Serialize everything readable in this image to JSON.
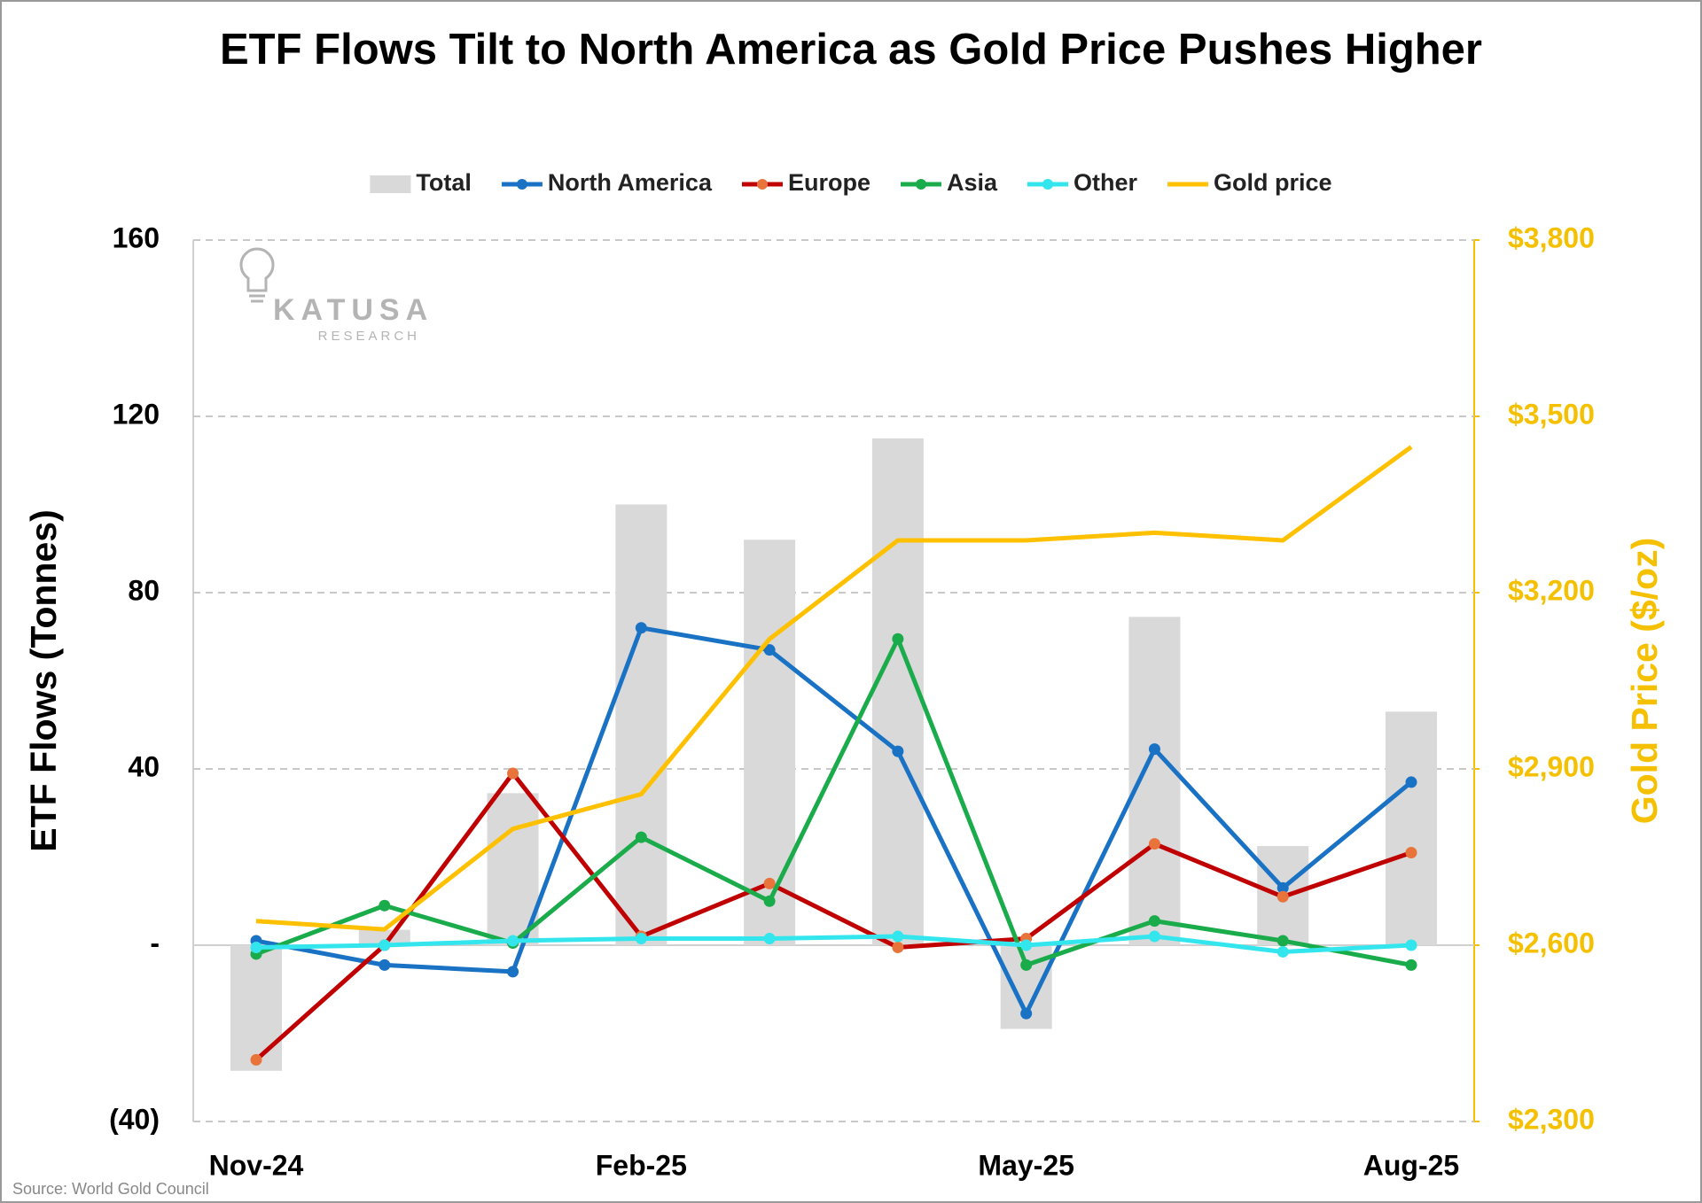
{
  "chart_data": {
    "type": "combo",
    "title": "ETF Flows Tilt to North America as Gold Price Pushes Higher",
    "ylabel": "ETF Flows (Tonnes)",
    "y2label": "Gold Price ($/oz)",
    "source": "Source: World Gold Council",
    "logo": {
      "name": "KATUSA",
      "subtitle": "RESEARCH"
    },
    "categories": [
      "Nov-24",
      null,
      null,
      "Feb-25",
      null,
      null,
      "May-25",
      null,
      null,
      "Aug-25"
    ],
    "ylim": [
      -40,
      160
    ],
    "yticks": [
      {
        "value": -40,
        "label": "(40)"
      },
      {
        "value": 0,
        "label": "-"
      },
      40,
      80,
      120,
      160
    ],
    "y2lim": [
      2300,
      3800
    ],
    "y2ticks": [
      {
        "value": 2300,
        "label": "$2,300"
      },
      {
        "value": 2600,
        "label": "$2,600"
      },
      {
        "value": 2900,
        "label": "$2,900"
      },
      {
        "value": 3200,
        "label": "$3,200"
      },
      {
        "value": 3500,
        "label": "$3,500"
      },
      {
        "value": 3800,
        "label": "$3,800"
      }
    ],
    "y2color": "#f5c000",
    "grid": true,
    "series": [
      {
        "name": "Total",
        "type": "bar",
        "color": "#d9d9d9",
        "values": [
          -28.5,
          3.5,
          34.5,
          100,
          92,
          115,
          -19,
          74.5,
          22.5,
          53
        ]
      },
      {
        "name": "North America",
        "type": "line",
        "color": "#1a72c4",
        "marker_color": "#1a72c4",
        "values": [
          1,
          -4.5,
          -6,
          72,
          67,
          44,
          -15.5,
          44.5,
          13,
          37
        ]
      },
      {
        "name": "Europe",
        "type": "line",
        "color": "#c00000",
        "marker_color": "#e8743b",
        "values": [
          -26,
          0,
          39,
          2,
          14,
          -0.5,
          1.5,
          23,
          11,
          21
        ]
      },
      {
        "name": "Asia",
        "type": "line",
        "color": "#1aab4b",
        "marker_color": "#1aab4b",
        "values": [
          -2,
          9,
          0.5,
          24.5,
          10,
          69.5,
          -4.5,
          5.5,
          1,
          -4.5
        ]
      },
      {
        "name": "Other",
        "type": "line",
        "color": "#33e6ee",
        "marker_color": "#33e6ee",
        "values": [
          -0.5,
          0,
          1,
          1.5,
          1.5,
          2,
          0,
          2,
          -1.5,
          0
        ]
      },
      {
        "name": "Gold price",
        "type": "line",
        "axis": "y2",
        "color": "#ffc000",
        "values": [
          2641,
          2627,
          2798,
          2857,
          3121,
          3289,
          3289,
          3302,
          3289,
          3448
        ]
      }
    ]
  }
}
